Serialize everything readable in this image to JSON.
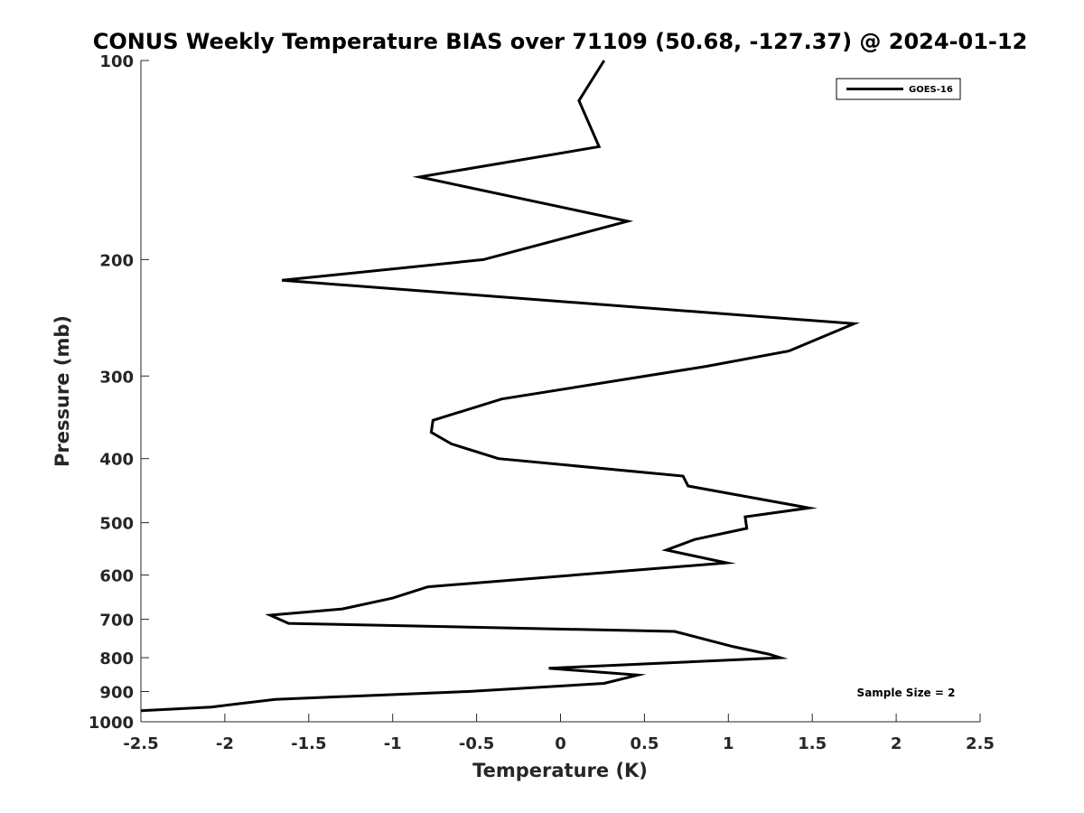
{
  "chart_data": {
    "type": "line",
    "title": "CONUS Weekly Temperature BIAS over 71109 (50.68, -127.37) @ 2024-01-12",
    "xlabel": "Temperature (K)",
    "ylabel": "Pressure (mb)",
    "xlim": [
      -2.5,
      2.5
    ],
    "ylim": [
      1000,
      100
    ],
    "y_scale": "log",
    "y_reversed": true,
    "xticks": [
      -2.5,
      -2,
      -1.5,
      -1,
      -0.5,
      0,
      0.5,
      1,
      1.5,
      2,
      2.5
    ],
    "xtick_labels": [
      "-2.5",
      "-2",
      "-1.5",
      "-1",
      "-0.5",
      "0",
      "0.5",
      "1",
      "1.5",
      "2",
      "2.5"
    ],
    "yticks": [
      100,
      200,
      300,
      400,
      500,
      600,
      700,
      800,
      900,
      1000
    ],
    "ytick_labels": [
      "100",
      "200",
      "300",
      "400",
      "500",
      "600",
      "700",
      "800",
      "900",
      "1000"
    ],
    "grid": false,
    "legend_position": "top-right",
    "series": [
      {
        "name": "GOES-16",
        "color": "#000000",
        "x": [
          0.26,
          0.11,
          0.23,
          -0.84,
          0.4,
          -0.46,
          -1.66,
          1.75,
          1.36,
          0.87,
          -0.35,
          -0.76,
          -0.77,
          -0.65,
          -0.37,
          0.73,
          0.76,
          1.48,
          1.1,
          1.11,
          0.8,
          0.63,
          0.99,
          -0.79,
          -1.0,
          -1.3,
          -1.73,
          -1.62,
          0.68,
          1.03,
          1.24,
          1.31,
          -0.07,
          0.46,
          0.26,
          -0.55,
          -1.7,
          -2.08,
          -2.5
        ],
        "y": [
          100,
          115,
          135,
          150,
          175,
          200,
          215,
          250,
          275,
          290,
          325,
          350,
          365,
          380,
          400,
          425,
          440,
          475,
          490,
          510,
          530,
          550,
          575,
          625,
          650,
          675,
          690,
          710,
          730,
          770,
          790,
          800,
          830,
          850,
          875,
          900,
          925,
          950,
          962
        ]
      }
    ],
    "annotations": [
      "Sample Size = 2"
    ]
  }
}
